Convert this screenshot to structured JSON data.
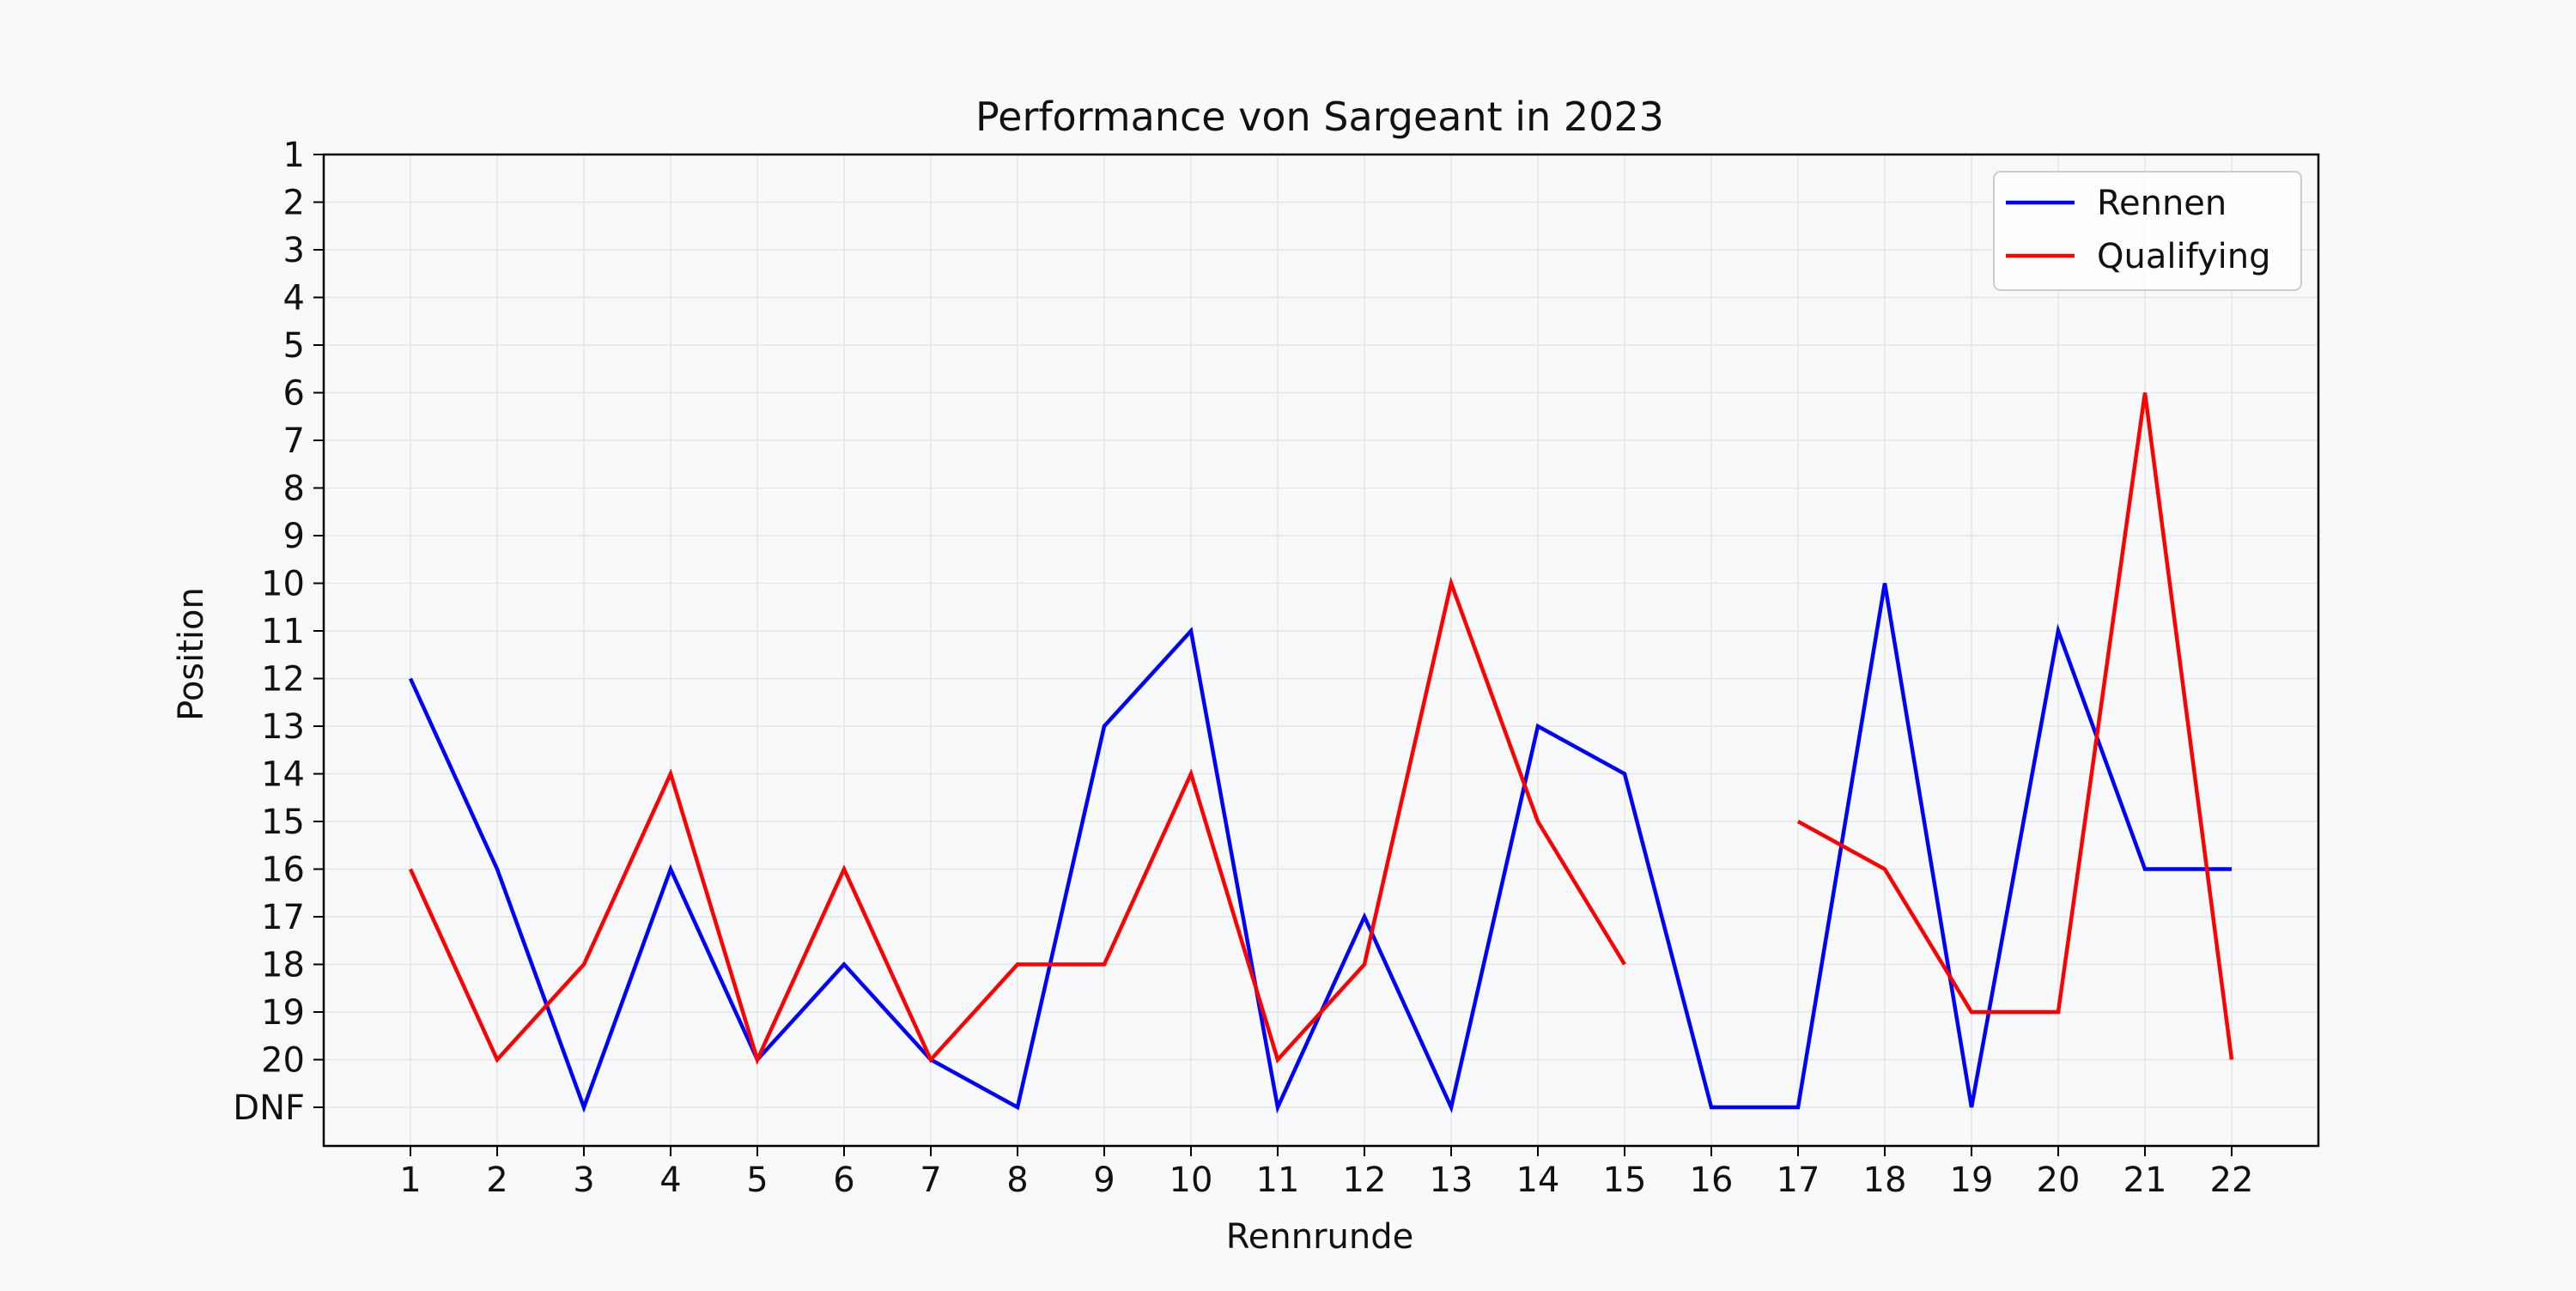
{
  "chart_data": {
    "type": "line",
    "title": "Performance von Sargeant in 2023",
    "xlabel": "Rennrunde",
    "ylabel": "Position",
    "x": [
      1,
      2,
      3,
      4,
      5,
      6,
      7,
      8,
      9,
      10,
      11,
      12,
      13,
      14,
      15,
      16,
      17,
      18,
      19,
      20,
      21,
      22
    ],
    "xlim": [
      0,
      23
    ],
    "y_ticks": [
      "1",
      "2",
      "3",
      "4",
      "5",
      "6",
      "7",
      "8",
      "9",
      "10",
      "11",
      "12",
      "13",
      "14",
      "15",
      "16",
      "17",
      "18",
      "19",
      "20",
      "DNF"
    ],
    "ylim": [
      1,
      21
    ],
    "y_inverted": true,
    "dnf_value": 21,
    "grid": true,
    "legend_position": "top-right",
    "series": [
      {
        "name": "Rennen",
        "color": "#0000ff",
        "values": [
          12,
          16,
          21,
          16,
          20,
          18,
          20,
          21,
          13,
          11,
          21,
          17,
          21,
          13,
          14,
          21,
          21,
          10,
          21,
          11,
          16,
          16
        ]
      },
      {
        "name": "Qualifying",
        "color": "#ff0000",
        "values": [
          16,
          20,
          18,
          14,
          20,
          16,
          20,
          18,
          18,
          14,
          20,
          18,
          10,
          15,
          18,
          null,
          15,
          16,
          19,
          19,
          6,
          20
        ]
      }
    ]
  }
}
